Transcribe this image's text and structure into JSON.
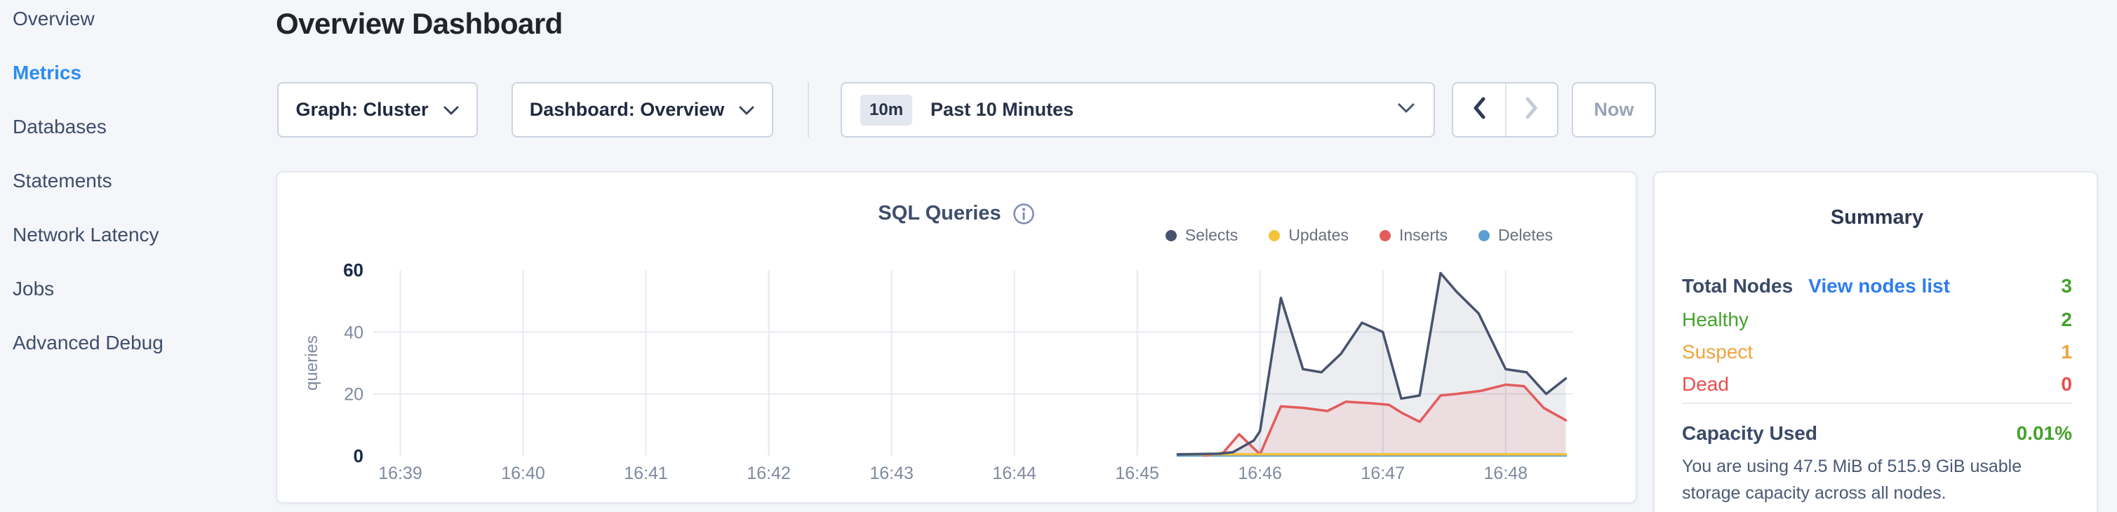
{
  "sidebar": {
    "items": [
      {
        "label": "Overview",
        "active": false
      },
      {
        "label": "Metrics",
        "active": true
      },
      {
        "label": "Databases",
        "active": false
      },
      {
        "label": "Statements",
        "active": false
      },
      {
        "label": "Network Latency",
        "active": false
      },
      {
        "label": "Jobs",
        "active": false
      },
      {
        "label": "Advanced Debug",
        "active": false
      }
    ]
  },
  "header": {
    "title": "Overview Dashboard"
  },
  "toolbar": {
    "graph_dropdown_label": "Graph: Cluster",
    "dashboard_dropdown_label": "Dashboard: Overview",
    "time_badge": "10m",
    "time_label": "Past 10 Minutes",
    "now_label": "Now"
  },
  "chart_card": {
    "title": "SQL Queries"
  },
  "chart_data": {
    "type": "line",
    "title": "SQL Queries",
    "ylabel": "queries",
    "x_axis_note": "time of day, minutes after 16:00",
    "x_domain": [
      38.78,
      48.55
    ],
    "y_domain": [
      0,
      60
    ],
    "x_ticks": [
      {
        "t": 39,
        "label": "16:39"
      },
      {
        "t": 40,
        "label": "16:40"
      },
      {
        "t": 41,
        "label": "16:41"
      },
      {
        "t": 42,
        "label": "16:42"
      },
      {
        "t": 43,
        "label": "16:43"
      },
      {
        "t": 44,
        "label": "16:44"
      },
      {
        "t": 45,
        "label": "16:45"
      },
      {
        "t": 46,
        "label": "16:46"
      },
      {
        "t": 47,
        "label": "16:47"
      },
      {
        "t": 48,
        "label": "16:48"
      }
    ],
    "y_ticks": [
      0,
      20,
      40,
      60
    ],
    "grid": true,
    "legend_position": "top-right",
    "series": [
      {
        "name": "Selects",
        "color": "#47536e",
        "fill": "rgba(71,83,110,0.10)",
        "points": [
          [
            45.33,
            0.5
          ],
          [
            45.67,
            0.7
          ],
          [
            45.78,
            1.2
          ],
          [
            45.95,
            5
          ],
          [
            46.0,
            8
          ],
          [
            46.17,
            51
          ],
          [
            46.35,
            28
          ],
          [
            46.5,
            27
          ],
          [
            46.66,
            33
          ],
          [
            46.83,
            43
          ],
          [
            47.0,
            40
          ],
          [
            47.15,
            18.5
          ],
          [
            47.3,
            19.5
          ],
          [
            47.47,
            59
          ],
          [
            47.6,
            53
          ],
          [
            47.78,
            46
          ],
          [
            48.0,
            28
          ],
          [
            48.17,
            27
          ],
          [
            48.33,
            20
          ],
          [
            48.49,
            25
          ]
        ]
      },
      {
        "name": "Updates",
        "color": "#f5c33b",
        "fill": "none",
        "points": [
          [
            45.33,
            0.5
          ],
          [
            48.49,
            0.5
          ]
        ]
      },
      {
        "name": "Inserts",
        "color": "#e25c5c",
        "fill": "rgba(226,92,92,0.10)",
        "points": [
          [
            45.55,
            0.1
          ],
          [
            45.7,
            1
          ],
          [
            45.83,
            7
          ],
          [
            46.0,
            0.5
          ],
          [
            46.17,
            16
          ],
          [
            46.35,
            15.5
          ],
          [
            46.55,
            14.5
          ],
          [
            46.7,
            17.5
          ],
          [
            46.9,
            17
          ],
          [
            47.05,
            16.5
          ],
          [
            47.15,
            14
          ],
          [
            47.3,
            11
          ],
          [
            47.47,
            19.5
          ],
          [
            47.6,
            20
          ],
          [
            47.8,
            21
          ],
          [
            48.0,
            23
          ],
          [
            48.15,
            22.5
          ],
          [
            48.31,
            15.5
          ],
          [
            48.49,
            11.5
          ]
        ]
      },
      {
        "name": "Deletes",
        "color": "#5b9fd4",
        "fill": "none",
        "points": [
          [
            45.33,
            0.15
          ],
          [
            48.49,
            0.15
          ]
        ]
      }
    ]
  },
  "summary": {
    "title": "Summary",
    "total_nodes": {
      "label": "Total Nodes",
      "link": "View nodes list",
      "value": "3",
      "value_color": "#44a22c"
    },
    "statuses": [
      {
        "label": "Healthy",
        "value": "2",
        "color": "#44a22c"
      },
      {
        "label": "Suspect",
        "value": "1",
        "color": "#f0a33d"
      },
      {
        "label": "Dead",
        "value": "0",
        "color": "#e4504e"
      }
    ],
    "capacity": {
      "label": "Capacity Used",
      "value": "0.01%",
      "value_color": "#44a22c",
      "description": "You are using 47.5 MiB of 515.9 GiB usable storage capacity across all nodes."
    }
  },
  "colors": {
    "background": "#f4f6fa",
    "nav_active": "#2d8cf0",
    "link": "#2e7cf0",
    "grid_line": "#e7eaf1",
    "axis_label": "#7e8aa0",
    "axis_label_strong": "#16294b"
  }
}
